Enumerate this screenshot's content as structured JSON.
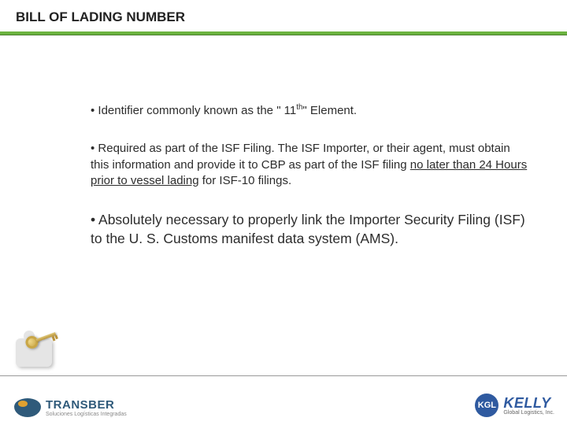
{
  "slide": {
    "title": "BILL OF LADING NUMBER",
    "bullets": {
      "b1_pre": "•  Identifier commonly known as the \" 11",
      "b1_sup": "th",
      "b1_post": "\" Element.",
      "b2_pre": "• Required as part of the ISF Filing. The ISF Importer, or their agent, must obtain this information and provide it to CBP as part of the ISF filing ",
      "b2_underline": "no later than 24 Hours prior to vessel lading",
      "b2_post": " for ISF-10 filings.",
      "b3": "• Absolutely necessary to properly link the Importer Security Filing (ISF) to the U. S. Customs manifest data system (AMS)."
    },
    "colors": {
      "accent_green": "#6bb33f",
      "brand_blue": "#2f5aa0",
      "gold": "#c9a646"
    },
    "logos": {
      "left_brand": "TRANSBER",
      "left_tag": "Soluciones Logísticas Integradas",
      "right_mark": "KGL",
      "right_brand": "KELLY",
      "right_tag": "Global Logistics, Inc."
    }
  }
}
